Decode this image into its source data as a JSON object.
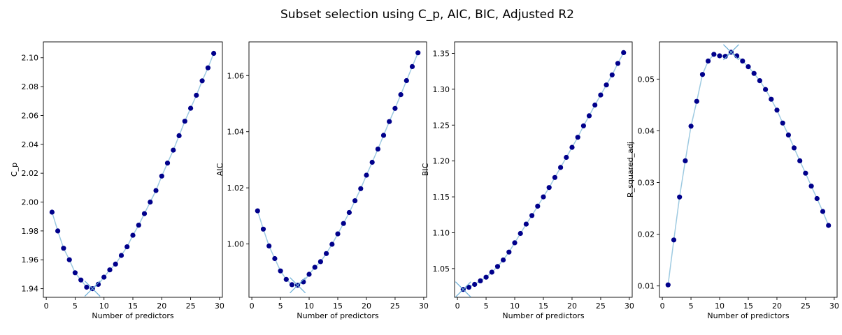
{
  "figure": {
    "title": "Subset selection using C_p, AIC, BIC, Adjusted R2",
    "line_color": "#9ecae1",
    "marker_color": "#00008b",
    "best_marker_color": "#6baed6"
  },
  "chart_data": [
    {
      "type": "line",
      "xlabel": "Number of predictors",
      "ylabel": "C_p",
      "xlim": [
        -0.5,
        30.5
      ],
      "ylim": [
        1.934,
        2.111
      ],
      "xticks": [
        0,
        5,
        10,
        15,
        20,
        25,
        30
      ],
      "yticks": [
        1.94,
        1.96,
        1.98,
        2.0,
        2.02,
        2.04,
        2.06,
        2.08,
        2.1
      ],
      "tick_decimals": 2,
      "best_x": 8,
      "x": [
        1,
        2,
        3,
        4,
        5,
        6,
        7,
        8,
        9,
        10,
        11,
        12,
        13,
        14,
        15,
        16,
        17,
        18,
        19,
        20,
        21,
        22,
        23,
        24,
        25,
        26,
        27,
        28,
        29
      ],
      "y": [
        1.993,
        1.98,
        1.968,
        1.96,
        1.951,
        1.946,
        1.941,
        1.94,
        1.943,
        1.948,
        1.953,
        1.957,
        1.963,
        1.969,
        1.977,
        1.984,
        1.992,
        2.0,
        2.008,
        2.018,
        2.027,
        2.036,
        2.046,
        2.056,
        2.065,
        2.074,
        2.084,
        2.093,
        2.103
      ]
    },
    {
      "type": "line",
      "xlabel": "Number of predictors",
      "ylabel": "AIC",
      "xlim": [
        -0.5,
        30.5
      ],
      "ylim": [
        0.981,
        1.072
      ],
      "xticks": [
        0,
        5,
        10,
        15,
        20,
        25,
        30
      ],
      "yticks": [
        1.0,
        1.02,
        1.04,
        1.06
      ],
      "tick_decimals": 2,
      "best_x": 8,
      "x": [
        1,
        2,
        3,
        4,
        5,
        6,
        7,
        8,
        9,
        10,
        11,
        12,
        13,
        14,
        15,
        16,
        17,
        18,
        19,
        20,
        21,
        22,
        23,
        24,
        25,
        26,
        27,
        28,
        29
      ],
      "y": [
        1.0118,
        1.0053,
        0.9993,
        0.9948,
        0.9904,
        0.9874,
        0.9855,
        0.9853,
        0.9865,
        0.9892,
        0.9917,
        0.9937,
        0.9966,
        0.9999,
        1.0036,
        1.0073,
        1.0112,
        1.0154,
        1.0197,
        1.0245,
        1.0291,
        1.0338,
        1.0387,
        1.0436,
        1.0483,
        1.0532,
        1.0582,
        1.0632,
        1.0681
      ]
    },
    {
      "type": "line",
      "xlabel": "Number of predictors",
      "ylabel": "BIC",
      "xlim": [
        -0.5,
        30.5
      ],
      "ylim": [
        1.01,
        1.366
      ],
      "xticks": [
        0,
        5,
        10,
        15,
        20,
        25,
        30
      ],
      "yticks": [
        1.05,
        1.1,
        1.15,
        1.2,
        1.25,
        1.3,
        1.35
      ],
      "tick_decimals": 2,
      "best_x": 1,
      "x": [
        1,
        2,
        3,
        4,
        5,
        6,
        7,
        8,
        9,
        10,
        11,
        12,
        13,
        14,
        15,
        16,
        17,
        18,
        19,
        20,
        21,
        22,
        23,
        24,
        25,
        26,
        27,
        28,
        29
      ],
      "y": [
        1.021,
        1.024,
        1.028,
        1.033,
        1.038,
        1.045,
        1.053,
        1.062,
        1.073,
        1.086,
        1.099,
        1.112,
        1.124,
        1.137,
        1.15,
        1.163,
        1.177,
        1.191,
        1.205,
        1.219,
        1.233,
        1.249,
        1.263,
        1.278,
        1.292,
        1.306,
        1.32,
        1.336,
        1.351
      ]
    },
    {
      "type": "line",
      "xlabel": "Number of predictors",
      "ylabel": "R_squared_adj",
      "xlim": [
        -0.5,
        30.5
      ],
      "ylim": [
        0.0078,
        0.0572
      ],
      "xticks": [
        0,
        5,
        10,
        15,
        20,
        25,
        30
      ],
      "yticks": [
        0.01,
        0.02,
        0.03,
        0.04,
        0.05
      ],
      "tick_decimals": 2,
      "best_x": 12,
      "x": [
        1,
        2,
        3,
        4,
        5,
        6,
        7,
        8,
        9,
        10,
        11,
        12,
        13,
        14,
        15,
        16,
        17,
        18,
        19,
        20,
        21,
        22,
        23,
        24,
        25,
        26,
        27,
        28,
        29
      ],
      "y": [
        0.0102,
        0.0189,
        0.0272,
        0.0342,
        0.0409,
        0.0457,
        0.0509,
        0.0535,
        0.0548,
        0.0545,
        0.0544,
        0.0552,
        0.0545,
        0.0535,
        0.0524,
        0.0511,
        0.0497,
        0.048,
        0.0461,
        0.044,
        0.0415,
        0.0392,
        0.0367,
        0.0342,
        0.0318,
        0.0293,
        0.0269,
        0.0244,
        0.0217
      ]
    }
  ]
}
